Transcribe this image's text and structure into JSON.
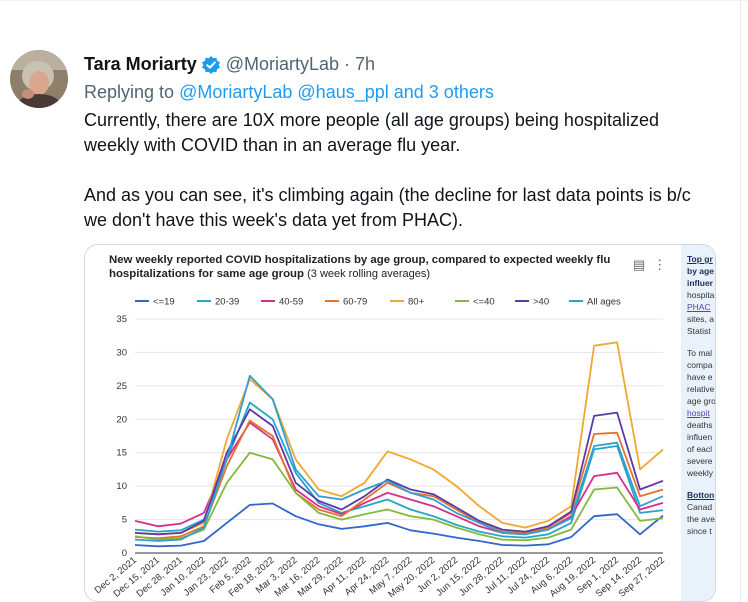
{
  "tweet": {
    "author_name": "Tara Moriarty",
    "handle": "@MoriartyLab",
    "time": "· 7h",
    "replying_prefix": "Replying to",
    "reply_to_1": "@MoriartyLab",
    "reply_to_2": "@haus_ppl",
    "reply_to_rest": "and 3 others",
    "text_line_1": "Currently, there are 10X more people (all age groups) being hospitalized",
    "text_line_2": "weekly with COVID than in an average flu year.",
    "text_line_3": "And as you can see, it's climbing again (the decline for last data points is b/c",
    "text_line_4": "we don't have this week's data yet from PHAC)."
  },
  "side_panel": {
    "lines": [
      "Top gr",
      "by age",
      "influer",
      "hospita",
      "PHAC",
      "sites, a",
      "Statist",
      "To mal",
      "compa",
      "have e",
      "relative",
      "age gro",
      "hospit",
      "deaths",
      "influen",
      "of eacl",
      "severe",
      "weekly",
      "Botton",
      "Canad",
      "the ave",
      "since t"
    ]
  },
  "colors": {
    "link": "#1d9bf0",
    "verified": "#1d9bf0"
  },
  "chart_data": {
    "type": "line",
    "title": "New weekly reported COVID hospitalizations by age group, compared to expected weekly flu hospitalizations for same age group",
    "subtitle": "(3 week rolling averages)",
    "xlabel": "",
    "ylabel": "",
    "ylim": [
      0,
      35
    ],
    "yticks": [
      0,
      5,
      10,
      15,
      20,
      25,
      30,
      35
    ],
    "x": [
      "Dec 2, 2021",
      "Dec 15, 2021",
      "Dec 28, 2021",
      "Jan 10, 2022",
      "Jan 23, 2022",
      "Feb 5, 2022",
      "Feb 18, 2022",
      "Mar 3, 2022",
      "Mar 16, 2022",
      "Mar 29, 2022",
      "Apr 11, 2022",
      "Apr 24, 2022",
      "May 7, 2022",
      "May 20, 2022",
      "Jun 2, 2022",
      "Jun 15, 2022",
      "Jun 28, 2022",
      "Jul 11, 2022",
      "Jul 24, 2022",
      "Aug 6, 2022",
      "Aug 19, 2022",
      "Sep 1, 2022",
      "Sep 14, 2022",
      "Sep 27, 2022"
    ],
    "series": [
      {
        "name": "<=19",
        "color": "#3366cc",
        "values": [
          1.2,
          1.0,
          1.1,
          1.8,
          4.5,
          7.2,
          7.4,
          5.5,
          4.3,
          3.6,
          4.0,
          4.5,
          3.4,
          2.9,
          2.3,
          1.8,
          1.2,
          1.1,
          1.3,
          2.4,
          5.5,
          5.8,
          2.8,
          5.6
        ]
      },
      {
        "name": "20-39",
        "color": "#24a6c7",
        "values": [
          3.5,
          3.2,
          3.4,
          5.0,
          14.0,
          22.5,
          20.0,
          12.0,
          7.5,
          6.0,
          7.0,
          8.0,
          6.5,
          5.5,
          4.2,
          3.2,
          2.5,
          2.3,
          2.8,
          4.5,
          15.5,
          16.0,
          6.0,
          6.4
        ]
      },
      {
        "name": "40-59",
        "color": "#d62f8a",
        "values": [
          4.8,
          4.0,
          4.4,
          6.0,
          14.0,
          19.5,
          17.0,
          9.5,
          7.0,
          5.8,
          7.5,
          9.0,
          8.0,
          7.0,
          5.5,
          4.0,
          3.0,
          2.8,
          3.5,
          5.5,
          11.5,
          12.0,
          6.5,
          7.5
        ]
      },
      {
        "name": "60-79",
        "color": "#e8722a",
        "values": [
          2.4,
          2.2,
          2.5,
          4.0,
          13.0,
          19.8,
          17.5,
          9.0,
          6.5,
          5.5,
          8.0,
          10.5,
          9.0,
          8.5,
          6.5,
          4.5,
          3.2,
          3.0,
          3.8,
          6.0,
          17.8,
          18.0,
          8.5,
          9.5
        ]
      },
      {
        "name": "80+",
        "color": "#f0a830",
        "values": [
          3.0,
          2.8,
          3.0,
          4.5,
          17.0,
          26.0,
          23.0,
          14.0,
          9.5,
          8.5,
          10.5,
          15.2,
          14.0,
          12.5,
          10.0,
          7.0,
          4.5,
          3.8,
          4.8,
          7.0,
          31.0,
          31.5,
          12.5,
          15.5
        ]
      },
      {
        "name": "<=40",
        "color": "#86b83c",
        "values": [
          2.5,
          2.0,
          2.2,
          3.5,
          10.5,
          15.0,
          14.0,
          9.0,
          6.0,
          5.0,
          5.8,
          6.5,
          5.5,
          5.0,
          3.8,
          2.8,
          2.0,
          1.9,
          2.3,
          3.5,
          9.5,
          9.8,
          4.8,
          5.2
        ]
      },
      {
        "name": ">40",
        "color": "#5a3aa8",
        "values": [
          3.0,
          2.8,
          3.0,
          4.8,
          15.0,
          21.5,
          19.0,
          10.5,
          7.8,
          6.5,
          8.5,
          11.0,
          9.5,
          8.8,
          6.8,
          4.8,
          3.5,
          3.2,
          4.0,
          6.2,
          20.5,
          21.0,
          9.5,
          10.8
        ]
      },
      {
        "name": "All ages",
        "color": "#2f9fd6",
        "values": [
          2.0,
          1.8,
          2.0,
          3.8,
          14.0,
          26.5,
          23.0,
          12.5,
          8.5,
          8.0,
          9.5,
          10.8,
          9.0,
          8.0,
          6.0,
          4.5,
          3.0,
          2.8,
          3.5,
          5.2,
          16.0,
          16.5,
          7.0,
          8.5
        ]
      }
    ]
  }
}
